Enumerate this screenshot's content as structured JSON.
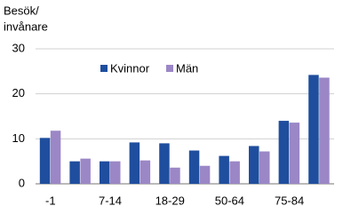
{
  "chart_data": {
    "type": "bar",
    "ylabel": [
      "Besök/",
      "invånare"
    ],
    "categories": [
      "-1",
      null,
      "7-14",
      null,
      "18-29",
      null,
      "50-64",
      null,
      "75-84",
      null
    ],
    "series": [
      {
        "name": "Kvinnor",
        "color": "#1f4e9e",
        "values": [
          10.2,
          5.0,
          5.0,
          9.2,
          9.0,
          7.4,
          6.2,
          8.4,
          14.0,
          24.2
        ]
      },
      {
        "name": "Män",
        "color": "#9b87c6",
        "values": [
          11.8,
          5.6,
          5.0,
          5.2,
          3.6,
          4.0,
          5.0,
          7.2,
          13.6,
          23.6
        ]
      }
    ],
    "ylim": [
      0,
      30
    ],
    "yticks": [
      0,
      10,
      20,
      30
    ],
    "grid": true,
    "legend": "top"
  }
}
